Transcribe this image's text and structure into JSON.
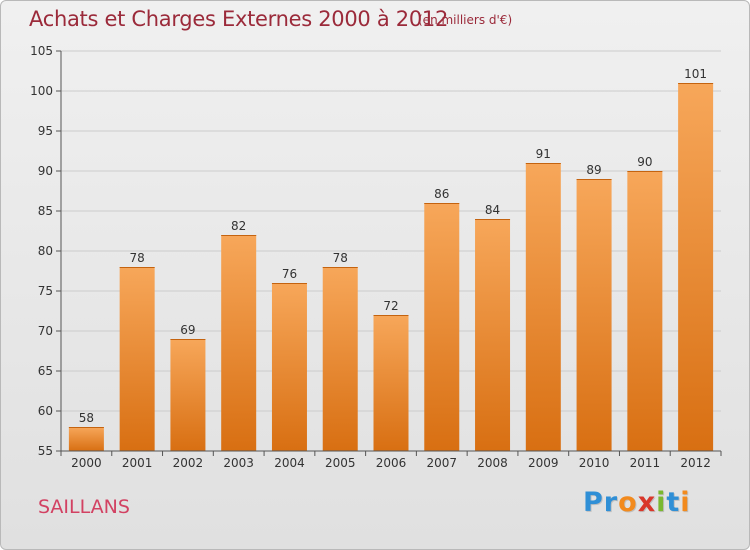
{
  "header": {
    "title": "Achats et Charges Externes 2000 à 2012",
    "subtitle": "(en milliers d'€)"
  },
  "footer": {
    "commune": "SAILLANS",
    "brand_letters": [
      "P",
      "r",
      "o",
      "x",
      "i",
      "t",
      "i"
    ],
    "brand_colors": [
      "#2f8fd6",
      "#2f8fd6",
      "#f28a1d",
      "#d9372a",
      "#7ab830",
      "#2f8fd6",
      "#f28a1d"
    ]
  },
  "colors": {
    "bar_top": "#f7a75a",
    "bar_bottom": "#d86f12",
    "grid": "#cccccc",
    "title": "#9b2a3a",
    "commune": "#d24162"
  },
  "chart_data": {
    "type": "bar",
    "title": "Achats et Charges Externes 2000 à 2012",
    "subtitle": "(en milliers d'€)",
    "categories": [
      "2000",
      "2001",
      "2002",
      "2003",
      "2004",
      "2005",
      "2006",
      "2007",
      "2008",
      "2009",
      "2010",
      "2011",
      "2012"
    ],
    "values": [
      58,
      78,
      69,
      82,
      76,
      78,
      72,
      86,
      84,
      91,
      89,
      90,
      101
    ],
    "ylim": [
      55,
      105
    ],
    "yticks": [
      55,
      60,
      65,
      70,
      75,
      80,
      85,
      90,
      95,
      100,
      105
    ],
    "grid": true,
    "data_labels": true,
    "legend": "none"
  }
}
